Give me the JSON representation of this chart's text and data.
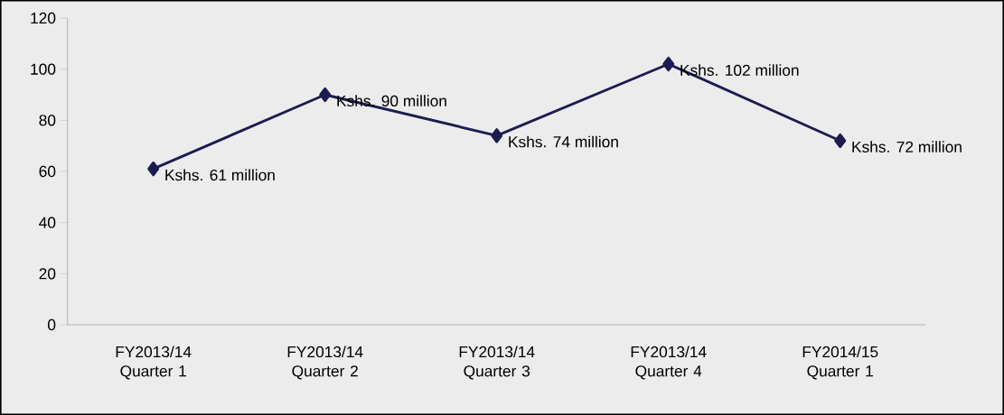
{
  "chart_data": {
    "type": "line",
    "categories": [
      "FY2013/14 Quarter 1",
      "FY2013/14 Quarter 2",
      "FY2013/14 Quarter 3",
      "FY2013/14 Quarter 4",
      "FY2014/15 Quarter 1"
    ],
    "series": [
      {
        "color": "#1c1c50",
        "values": [
          61,
          90,
          74,
          102,
          72
        ],
        "value_labels": [
          "Kshs. 61 million",
          "Kshs. 90 million",
          "Kshs. 74 million",
          "Kshs. 102 million",
          "Kshs. 72 million"
        ]
      }
    ],
    "ylim": [
      0,
      120
    ],
    "yticks": [
      0,
      20,
      40,
      60,
      80,
      100,
      120
    ],
    "grid": false,
    "legend": false,
    "marker": "diamond",
    "line_style": "solid"
  }
}
